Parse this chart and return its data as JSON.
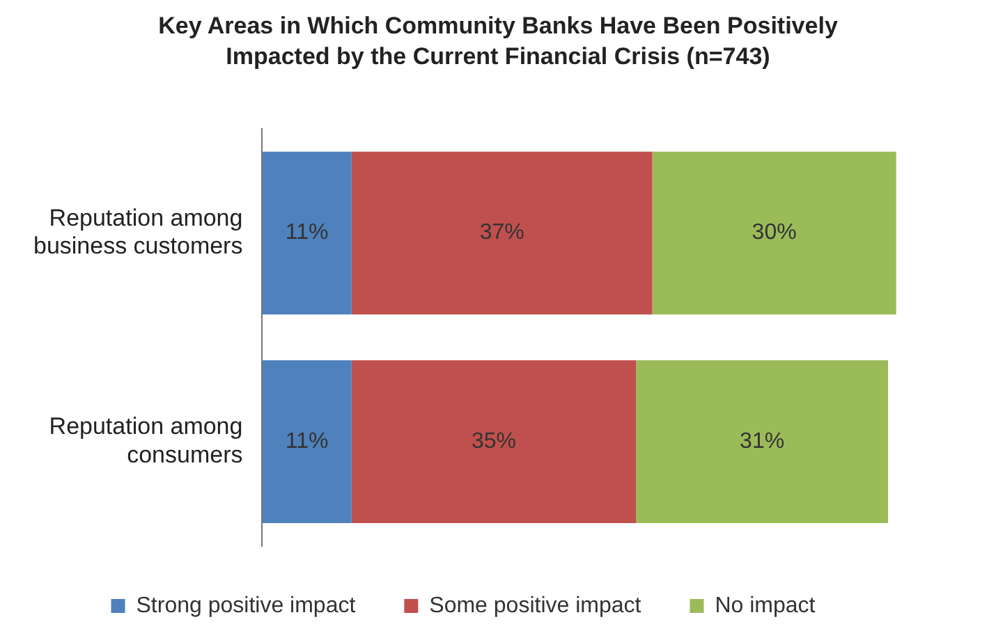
{
  "chart_data": {
    "type": "bar",
    "orientation": "horizontal",
    "stacked": true,
    "title": "Key Areas in Which Community Banks Have Been Positively Impacted by the Current Financial Crisis (n=743)",
    "categories": [
      "Reputation among business customers",
      "Reputation among consumers"
    ],
    "series": [
      {
        "name": "Strong positive impact",
        "color": "#4f81bd",
        "values": [
          11,
          11
        ],
        "value_labels": [
          "11%",
          "11%"
        ]
      },
      {
        "name": "Some positive impact",
        "color": "#c0504d",
        "values": [
          37,
          35
        ],
        "value_labels": [
          "37%",
          "35%"
        ]
      },
      {
        "name": "No impact",
        "color": "#9bbb59",
        "values": [
          30,
          31
        ],
        "value_labels": [
          "30%",
          "31%"
        ]
      }
    ],
    "legend": "bottom",
    "grid": false
  }
}
